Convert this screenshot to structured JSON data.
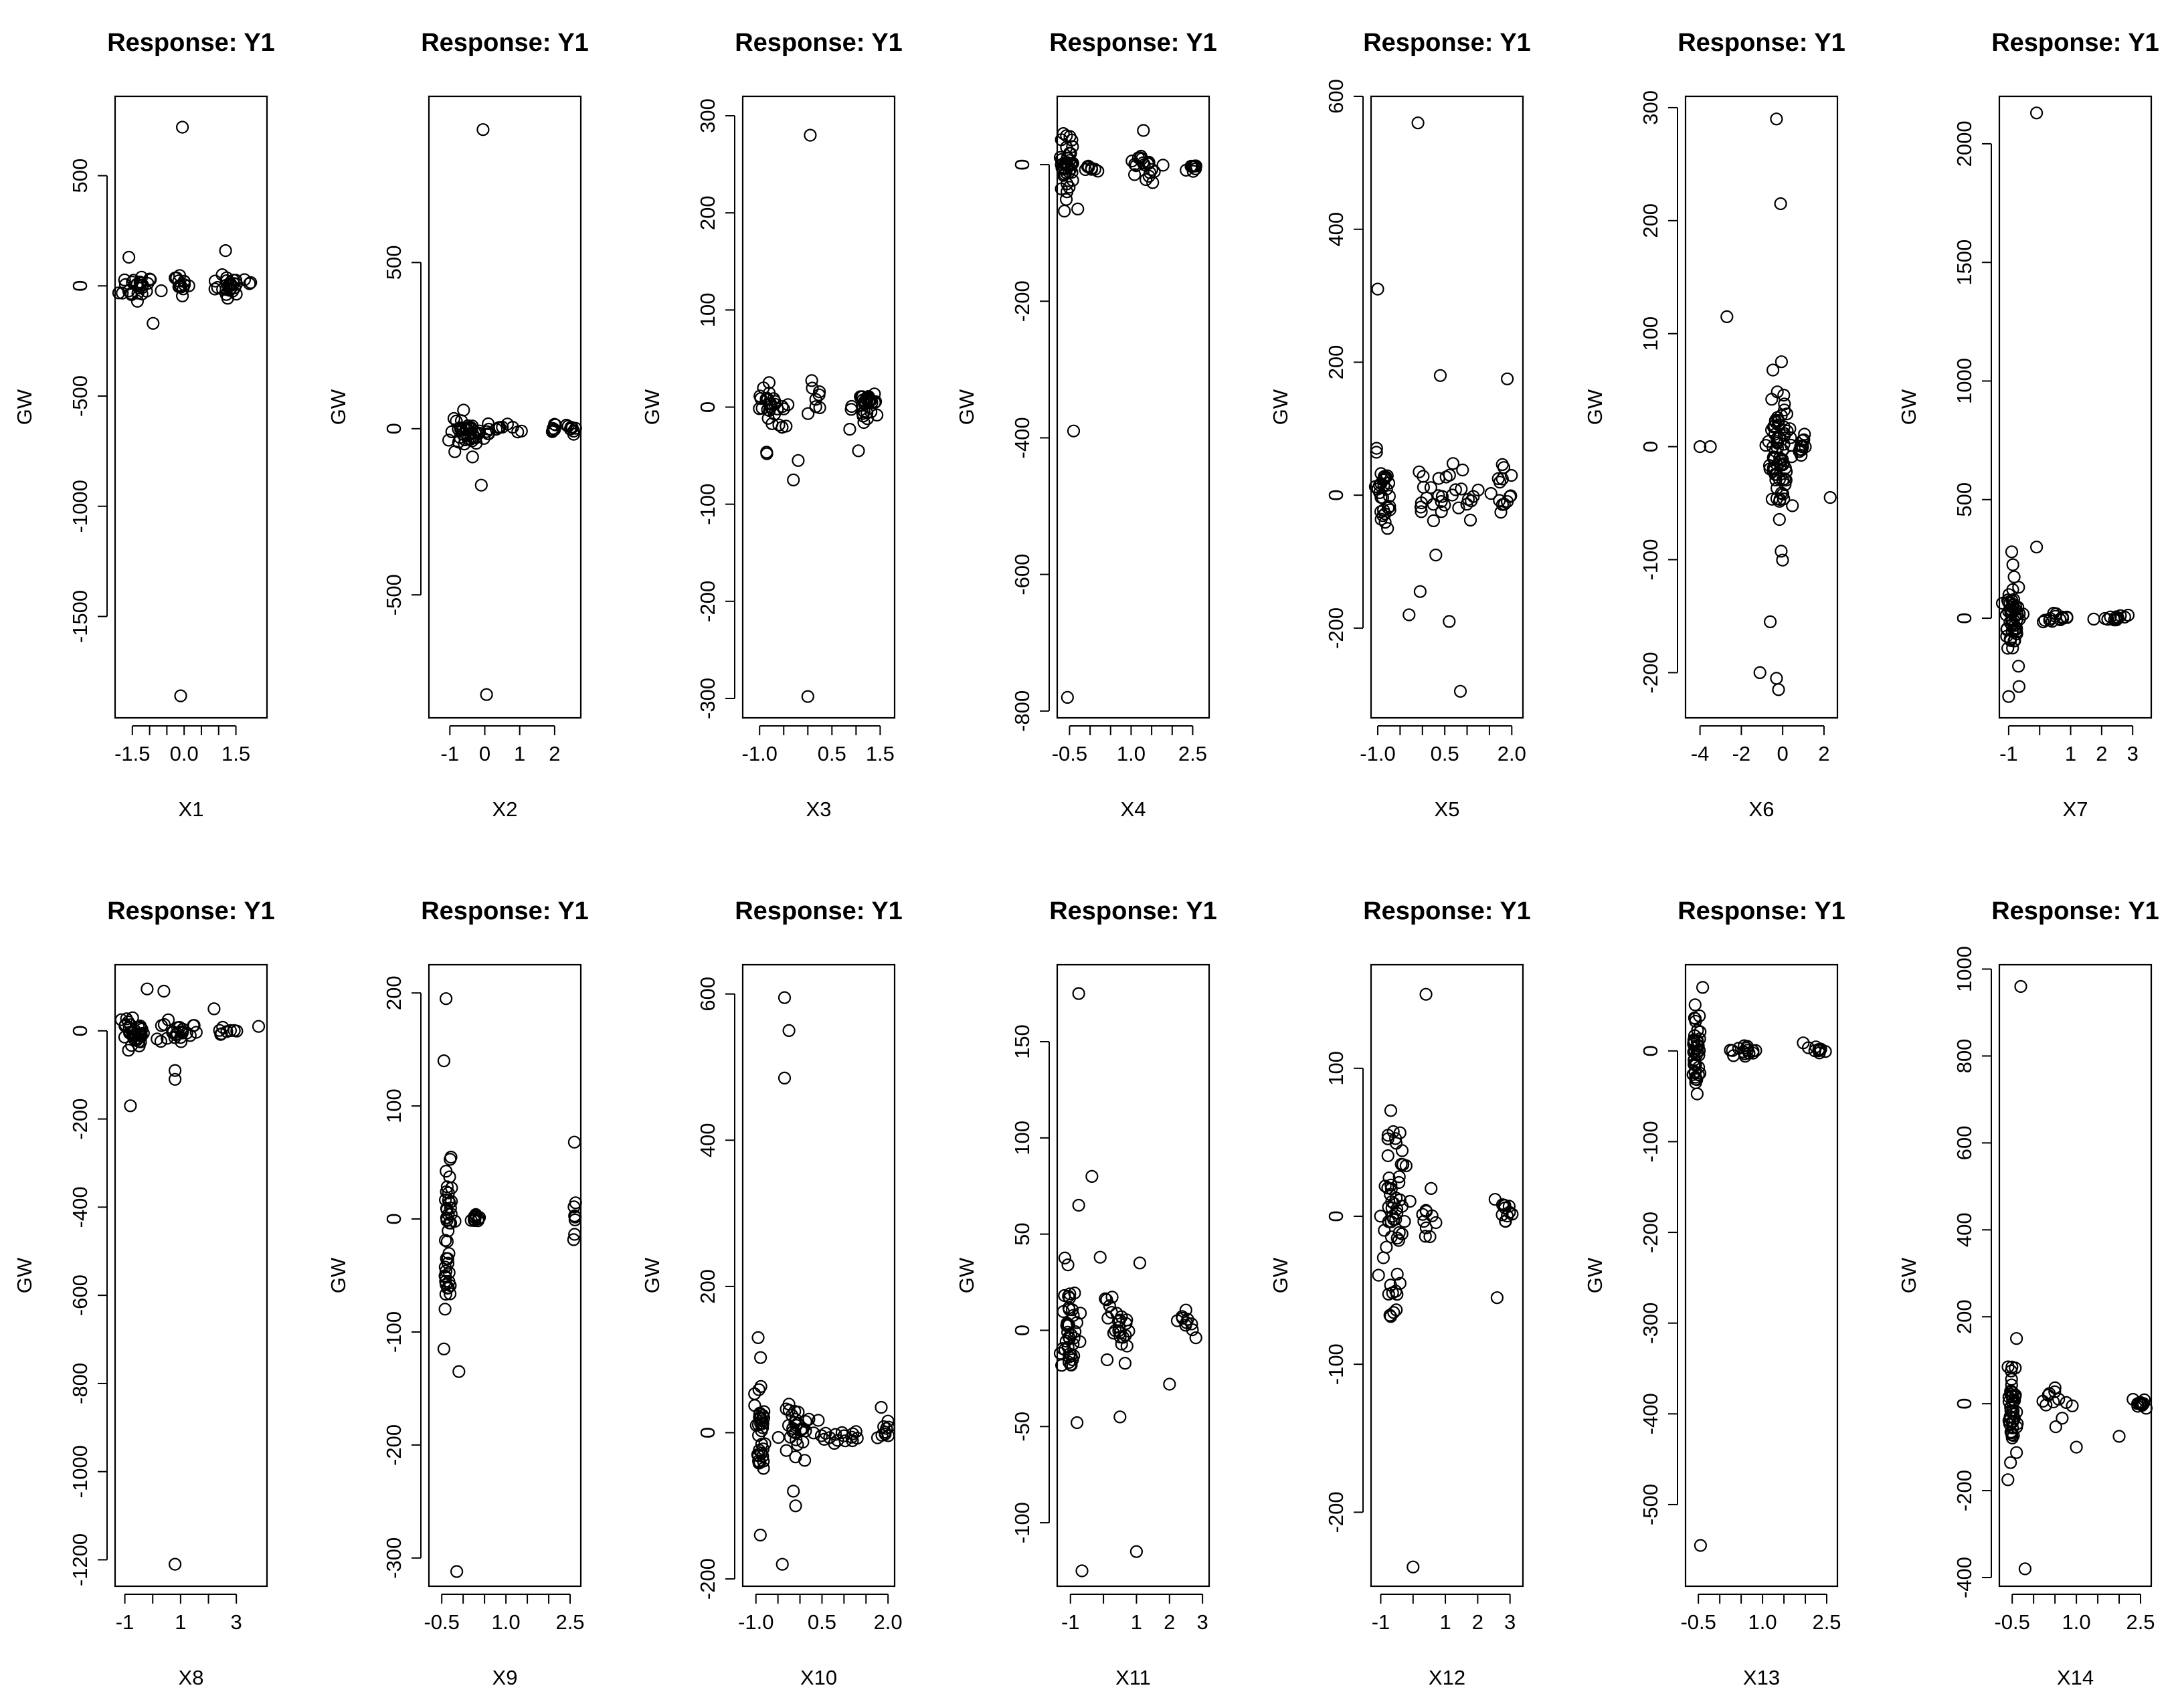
{
  "figure": {
    "point_color": "#000000",
    "background": "#ffffff"
  },
  "chart_data": [
    {
      "type": "scatter",
      "title": "Response: Y1",
      "xlabel": "X1",
      "ylabel": "GW",
      "xlim": [
        -2.0,
        2.4
      ],
      "ylim": [
        -1960,
        860
      ],
      "xticks": [
        -1.5,
        -1,
        -0.5,
        0,
        0.5,
        1,
        1.5
      ],
      "xticklabels": [
        "-1.5",
        "",
        "",
        "0.0",
        "",
        "",
        "1.5"
      ],
      "yticks": [
        -1500,
        -1000,
        -500,
        0,
        500
      ],
      "yticklabels": [
        "-1500",
        "-1000",
        "-500",
        "0",
        "500"
      ],
      "outliers": [
        [
          -0.05,
          720
        ],
        [
          -0.1,
          -1860
        ],
        [
          1.2,
          160
        ],
        [
          -1.6,
          130
        ],
        [
          -0.9,
          -170
        ]
      ],
      "clusters": [
        {
          "xc": -1.3,
          "xs": 0.45,
          "yc": 0,
          "ys": 35,
          "n": 26
        },
        {
          "xc": -0.1,
          "xs": 0.25,
          "yc": 5,
          "ys": 20,
          "n": 16
        },
        {
          "xc": 1.3,
          "xs": 0.5,
          "yc": 0,
          "ys": 30,
          "n": 28
        }
      ]
    },
    {
      "type": "scatter",
      "title": "Response: Y1",
      "xlabel": "X2",
      "ylabel": "GW",
      "xlim": [
        -1.6,
        2.75
      ],
      "ylim": [
        -870,
        1000
      ],
      "xticks": [
        -1,
        0,
        1,
        2
      ],
      "xticklabels": [
        "-1",
        "0",
        "1",
        "2"
      ],
      "yticks": [
        -500,
        0,
        500
      ],
      "yticklabels": [
        "-500",
        "0",
        "500"
      ],
      "outliers": [
        [
          -0.05,
          900
        ],
        [
          0.05,
          -800
        ],
        [
          -0.1,
          -170
        ],
        [
          -0.35,
          -85
        ]
      ],
      "clusters": [
        {
          "xc": -0.5,
          "xs": 0.6,
          "yc": 0,
          "ys": 25,
          "n": 40
        },
        {
          "xc": 0.5,
          "xs": 0.4,
          "yc": 0,
          "ys": 8,
          "n": 12
        },
        {
          "xc": 2.0,
          "xs": 0.1,
          "yc": 0,
          "ys": 8,
          "n": 6
        },
        {
          "xc": 2.5,
          "xs": 0.15,
          "yc": 0,
          "ys": 8,
          "n": 8
        }
      ]
    },
    {
      "type": "scatter",
      "title": "Response: Y1",
      "xlabel": "X3",
      "ylabel": "GW",
      "xlim": [
        -1.35,
        1.8
      ],
      "ylim": [
        -320,
        320
      ],
      "xticks": [
        -1,
        -0.5,
        0,
        0.5,
        1,
        1.5
      ],
      "xticklabels": [
        "-1.0",
        "",
        "",
        "0.5",
        "",
        "1.5"
      ],
      "yticks": [
        -300,
        -200,
        -100,
        0,
        100,
        200,
        300
      ],
      "yticklabels": [
        "-300",
        "-200",
        "-100",
        "0",
        "100",
        "200",
        "300"
      ],
      "outliers": [
        [
          0.05,
          280
        ],
        [
          0.0,
          -298
        ],
        [
          -0.85,
          -48
        ],
        [
          -0.3,
          -75
        ],
        [
          -0.2,
          -55
        ],
        [
          1.05,
          -45
        ]
      ],
      "clusters": [
        {
          "xc": -0.75,
          "xs": 0.35,
          "yc": 0,
          "ys": 15,
          "n": 30
        },
        {
          "xc": 0.15,
          "xs": 0.15,
          "yc": 12,
          "ys": 12,
          "n": 8
        },
        {
          "xc": 1.2,
          "xs": 0.35,
          "yc": 0,
          "ys": 8,
          "n": 30
        }
      ]
    },
    {
      "type": "scatter",
      "title": "Response: Y1",
      "xlabel": "X4",
      "ylabel": "GW",
      "xlim": [
        -0.8,
        2.9
      ],
      "ylim": [
        -810,
        100
      ],
      "xticks": [
        -0.5,
        0,
        0.5,
        1,
        1.5,
        2,
        2.5
      ],
      "xticklabels": [
        "-0.5",
        "",
        "",
        "1.0",
        "",
        "",
        "2.5"
      ],
      "yticks": [
        -800,
        -600,
        -400,
        -200,
        0
      ],
      "yticklabels": [
        "-800",
        "-600",
        "-400",
        "-200",
        "0"
      ],
      "outliers": [
        [
          -0.55,
          -780
        ],
        [
          -0.4,
          -390
        ],
        [
          1.3,
          50
        ],
        [
          -0.3,
          -65
        ]
      ],
      "clusters": [
        {
          "xc": -0.55,
          "xs": 0.18,
          "yc": 0,
          "ys": 22,
          "n": 40
        },
        {
          "xc": 0.0,
          "xs": 0.2,
          "yc": -5,
          "ys": 3,
          "n": 8
        },
        {
          "xc": 1.3,
          "xs": 0.35,
          "yc": -5,
          "ys": 10,
          "n": 20
        },
        {
          "xc": 2.45,
          "xs": 0.15,
          "yc": -5,
          "ys": 4,
          "n": 8
        }
      ]
    },
    {
      "type": "scatter",
      "title": "Response: Y1",
      "xlabel": "X5",
      "ylabel": "GW",
      "xlim": [
        -1.15,
        2.25
      ],
      "ylim": [
        -335,
        600
      ],
      "xticks": [
        -1,
        -0.5,
        0,
        0.5,
        1,
        1.5,
        2
      ],
      "xticklabels": [
        "-1.0",
        "",
        "",
        "0.5",
        "",
        "",
        "2.0"
      ],
      "yticks": [
        -200,
        0,
        200,
        400,
        600
      ],
      "yticklabels": [
        "-200",
        "0",
        "200",
        "400",
        "600"
      ],
      "outliers": [
        [
          -0.1,
          560
        ],
        [
          -1.0,
          310
        ],
        [
          0.4,
          180
        ],
        [
          1.9,
          175
        ],
        [
          0.85,
          -295
        ],
        [
          0.6,
          -190
        ],
        [
          -0.3,
          -180
        ],
        [
          -0.05,
          -145
        ],
        [
          0.3,
          -90
        ]
      ],
      "clusters": [
        {
          "xc": -0.9,
          "xs": 0.22,
          "yc": 0,
          "ys": 30,
          "n": 30
        },
        {
          "xc": 0.5,
          "xs": 0.7,
          "yc": 0,
          "ys": 20,
          "n": 30
        },
        {
          "xc": 1.8,
          "xs": 0.3,
          "yc": 0,
          "ys": 25,
          "n": 14
        }
      ]
    },
    {
      "type": "scatter",
      "title": "Response: Y1",
      "xlabel": "X6",
      "ylabel": "GW",
      "xlim": [
        -4.7,
        2.65
      ],
      "ylim": [
        -240,
        310
      ],
      "xticks": [
        -4,
        -2,
        0,
        2
      ],
      "xticklabels": [
        "-4",
        "-2",
        "0",
        "2"
      ],
      "yticks": [
        -200,
        -100,
        0,
        100,
        200,
        300
      ],
      "yticklabels": [
        "-200",
        "-100",
        "0",
        "100",
        "200",
        "300"
      ],
      "outliers": [
        [
          -0.3,
          290
        ],
        [
          -0.1,
          215
        ],
        [
          -2.7,
          115
        ],
        [
          -1.1,
          -200
        ],
        [
          -0.2,
          -215
        ],
        [
          -0.3,
          -205
        ],
        [
          -0.6,
          -155
        ],
        [
          2.3,
          -45
        ],
        [
          -4.0,
          0
        ],
        [
          -3.5,
          0
        ]
      ],
      "clusters": [
        {
          "xc": -0.2,
          "xs": 0.55,
          "yc": 0,
          "ys": 30,
          "n": 75
        },
        {
          "xc": 0.9,
          "xs": 0.35,
          "yc": 0,
          "ys": 5,
          "n": 12
        }
      ]
    },
    {
      "type": "scatter",
      "title": "Response: Y1",
      "xlabel": "X7",
      "ylabel": "GW",
      "xlim": [
        -1.3,
        3.6
      ],
      "ylim": [
        -420,
        2200
      ],
      "xticks": [
        -1,
        0,
        1,
        2,
        3
      ],
      "xticklabels": [
        "-1",
        "",
        "1",
        "2",
        "3"
      ],
      "yticks": [
        0,
        500,
        1000,
        1500,
        2000
      ],
      "yticklabels": [
        "0",
        "500",
        "1000",
        "1500",
        "2000"
      ],
      "outliers": [
        [
          -0.1,
          2130
        ],
        [
          -0.1,
          300
        ],
        [
          -1.0,
          -330
        ],
        [
          -0.9,
          280
        ]
      ],
      "clusters": [
        {
          "xc": -0.85,
          "xs": 0.25,
          "yc": 0,
          "ys": 90,
          "n": 55
        },
        {
          "xc": 0.5,
          "xs": 0.5,
          "yc": 0,
          "ys": 10,
          "n": 15
        },
        {
          "xc": 2.3,
          "xs": 0.6,
          "yc": 0,
          "ys": 5,
          "n": 12
        }
      ]
    },
    {
      "type": "scatter",
      "title": "Response: Y1",
      "xlabel": "X8",
      "ylabel": "GW",
      "xlim": [
        -1.35,
        4.1
      ],
      "ylim": [
        -1260,
        150
      ],
      "xticks": [
        -1,
        0,
        1,
        2,
        3
      ],
      "xticklabels": [
        "-1",
        "",
        "1",
        "",
        "3"
      ],
      "yticks": [
        -1200,
        -1000,
        -800,
        -600,
        -400,
        -200,
        0
      ],
      "yticklabels": [
        "-1200",
        "-1000",
        "-800",
        "-600",
        "-400",
        "-200",
        "0"
      ],
      "outliers": [
        [
          0.8,
          -1210
        ],
        [
          -0.8,
          -170
        ],
        [
          0.8,
          -90
        ],
        [
          0.8,
          -110
        ],
        [
          0.4,
          90
        ],
        [
          -0.2,
          95
        ],
        [
          2.2,
          50
        ],
        [
          3.8,
          10
        ]
      ],
      "clusters": [
        {
          "xc": -0.7,
          "xs": 0.4,
          "yc": 0,
          "ys": 20,
          "n": 35
        },
        {
          "xc": 0.9,
          "xs": 0.6,
          "yc": 0,
          "ys": 12,
          "n": 25
        },
        {
          "xc": 2.6,
          "xs": 0.4,
          "yc": 0,
          "ys": 5,
          "n": 8
        }
      ]
    },
    {
      "type": "scatter",
      "title": "Response: Y1",
      "xlabel": "X9",
      "ylabel": "GW",
      "xlim": [
        -0.8,
        2.75
      ],
      "ylim": [
        -325,
        225
      ],
      "xticks": [
        -0.5,
        0,
        0.5,
        1,
        1.5,
        2,
        2.5
      ],
      "xticklabels": [
        "-0.5",
        "",
        "",
        "1.0",
        "",
        "",
        "2.5"
      ],
      "yticks": [
        -300,
        -200,
        -100,
        0,
        100,
        200
      ],
      "yticklabels": [
        "-300",
        "-200",
        "-100",
        "0",
        "100",
        "200"
      ],
      "outliers": [
        [
          -0.4,
          195
        ],
        [
          -0.45,
          140
        ],
        [
          -0.1,
          -135
        ],
        [
          -0.15,
          -312
        ],
        [
          -0.45,
          -115
        ],
        [
          2.6,
          68
        ]
      ],
      "clusters": [
        {
          "xc": -0.35,
          "xs": 0.1,
          "yc": 0,
          "ys": 40,
          "n": 45
        },
        {
          "xc": 0.3,
          "xs": 0.2,
          "yc": 0,
          "ys": 3,
          "n": 12
        },
        {
          "xc": 2.6,
          "xs": 0.03,
          "yc": 0,
          "ys": 8,
          "n": 8
        }
      ]
    },
    {
      "type": "scatter",
      "title": "Response: Y1",
      "xlabel": "X10",
      "ylabel": "GW",
      "xlim": [
        -1.3,
        2.15
      ],
      "ylim": [
        -210,
        640
      ],
      "xticks": [
        -1,
        -0.5,
        0,
        0.5,
        1,
        1.5,
        2
      ],
      "xticklabels": [
        "-1.0",
        "",
        "",
        "0.5",
        "",
        "",
        "2.0"
      ],
      "yticks": [
        -200,
        0,
        200,
        400,
        600
      ],
      "yticklabels": [
        "-200",
        "0",
        "200",
        "400",
        "600"
      ],
      "outliers": [
        [
          -0.35,
          595
        ],
        [
          -0.25,
          550
        ],
        [
          -0.35,
          485
        ],
        [
          -0.95,
          130
        ],
        [
          -0.9,
          -140
        ],
        [
          -0.4,
          -180
        ],
        [
          -0.1,
          -100
        ],
        [
          -0.15,
          -80
        ]
      ],
      "clusters": [
        {
          "xc": -0.9,
          "xs": 0.15,
          "yc": 0,
          "ys": 35,
          "n": 35
        },
        {
          "xc": -0.1,
          "xs": 0.35,
          "yc": 0,
          "ys": 20,
          "n": 30
        },
        {
          "xc": 0.9,
          "xs": 0.4,
          "yc": -5,
          "ys": 5,
          "n": 15
        },
        {
          "xc": 1.9,
          "xs": 0.15,
          "yc": 5,
          "ys": 15,
          "n": 10
        }
      ]
    },
    {
      "type": "scatter",
      "title": "Response: Y1",
      "xlabel": "X11",
      "ylabel": "GW",
      "xlim": [
        -1.4,
        3.2
      ],
      "ylim": [
        -133,
        190
      ],
      "xticks": [
        -1,
        0,
        1,
        2,
        3
      ],
      "xticklabels": [
        "-1",
        "",
        "1",
        "2",
        "3"
      ],
      "yticks": [
        -100,
        -50,
        0,
        50,
        100,
        150
      ],
      "yticklabels": [
        "-100",
        "-50",
        "0",
        "50",
        "100",
        "150"
      ],
      "outliers": [
        [
          -0.75,
          175
        ],
        [
          -0.35,
          80
        ],
        [
          -0.75,
          65
        ],
        [
          -0.65,
          -125
        ],
        [
          1.0,
          -115
        ],
        [
          -0.8,
          -48
        ],
        [
          0.5,
          -45
        ],
        [
          2.0,
          -28
        ],
        [
          -0.1,
          38
        ],
        [
          1.1,
          35
        ]
      ],
      "clusters": [
        {
          "xc": -1.0,
          "xs": 0.25,
          "yc": 0,
          "ys": 15,
          "n": 40
        },
        {
          "xc": 0.4,
          "xs": 0.5,
          "yc": 0,
          "ys": 10,
          "n": 25
        },
        {
          "xc": 2.5,
          "xs": 0.4,
          "yc": 4,
          "ys": 4,
          "n": 10
        }
      ]
    },
    {
      "type": "scatter",
      "title": "Response: Y1",
      "xlabel": "X12",
      "ylabel": "GW",
      "xlim": [
        -1.3,
        3.4
      ],
      "ylim": [
        -250,
        170
      ],
      "xticks": [
        -1,
        0,
        1,
        2,
        3
      ],
      "xticklabels": [
        "-1",
        "",
        "1",
        "2",
        "3"
      ],
      "yticks": [
        -200,
        -100,
        0,
        100
      ],
      "yticklabels": [
        "-200",
        "-100",
        "0",
        "100"
      ],
      "outliers": [
        [
          0.4,
          150
        ],
        [
          0.0,
          -237
        ],
        [
          -0.5,
          5
        ],
        [
          2.6,
          -55
        ],
        [
          -0.6,
          -65
        ]
      ],
      "clusters": [
        {
          "xc": -0.6,
          "xs": 0.35,
          "yc": 5,
          "ys": 40,
          "n": 55
        },
        {
          "xc": 0.5,
          "xs": 0.3,
          "yc": -5,
          "ys": 15,
          "n": 10
        },
        {
          "xc": 2.85,
          "xs": 0.22,
          "yc": 0,
          "ys": 8,
          "n": 12
        }
      ]
    },
    {
      "type": "scatter",
      "title": "Response: Y1",
      "xlabel": "X13",
      "ylabel": "GW",
      "xlim": [
        -0.8,
        2.75
      ],
      "ylim": [
        -590,
        95
      ],
      "xticks": [
        -0.5,
        0,
        0.5,
        1,
        1.5,
        2,
        2.5
      ],
      "xticklabels": [
        "-0.5",
        "",
        "",
        "1.0",
        "",
        "",
        "2.5"
      ],
      "yticks": [
        -500,
        -400,
        -300,
        -200,
        -100,
        0
      ],
      "yticklabels": [
        "-500",
        "-400",
        "-300",
        "-200",
        "-100",
        "0"
      ],
      "outliers": [
        [
          -0.45,
          -545
        ],
        [
          -0.4,
          70
        ]
      ],
      "clusters": [
        {
          "xc": -0.55,
          "xs": 0.1,
          "yc": 0,
          "ys": 25,
          "n": 40
        },
        {
          "xc": 0.5,
          "xs": 0.4,
          "yc": 0,
          "ys": 3,
          "n": 15
        },
        {
          "xc": 2.3,
          "xs": 0.25,
          "yc": 2,
          "ys": 3,
          "n": 10
        }
      ]
    },
    {
      "type": "scatter",
      "title": "Response: Y1",
      "xlabel": "X14",
      "ylabel": "GW",
      "xlim": [
        -0.8,
        2.75
      ],
      "ylim": [
        -420,
        1010
      ],
      "xticks": [
        -0.5,
        0,
        0.5,
        1,
        1.5,
        2,
        2.5
      ],
      "xticklabels": [
        "-0.5",
        "",
        "",
        "1.0",
        "",
        "",
        "2.5"
      ],
      "yticks": [
        -400,
        -200,
        0,
        200,
        400,
        600,
        800,
        1000
      ],
      "yticklabels": [
        "-400",
        "-200",
        "0",
        "200",
        "400",
        "600",
        "800",
        "1000"
      ],
      "outliers": [
        [
          -0.3,
          960
        ],
        [
          -0.2,
          -380
        ],
        [
          -0.4,
          150
        ],
        [
          -0.6,
          -175
        ],
        [
          1.0,
          -100
        ],
        [
          2.0,
          -75
        ]
      ],
      "clusters": [
        {
          "xc": -0.5,
          "xs": 0.12,
          "yc": -5,
          "ys": 45,
          "n": 45
        },
        {
          "xc": 0.6,
          "xs": 0.35,
          "yc": 0,
          "ys": 20,
          "n": 12
        },
        {
          "xc": 2.5,
          "xs": 0.2,
          "yc": 0,
          "ys": 5,
          "n": 12
        }
      ]
    }
  ]
}
